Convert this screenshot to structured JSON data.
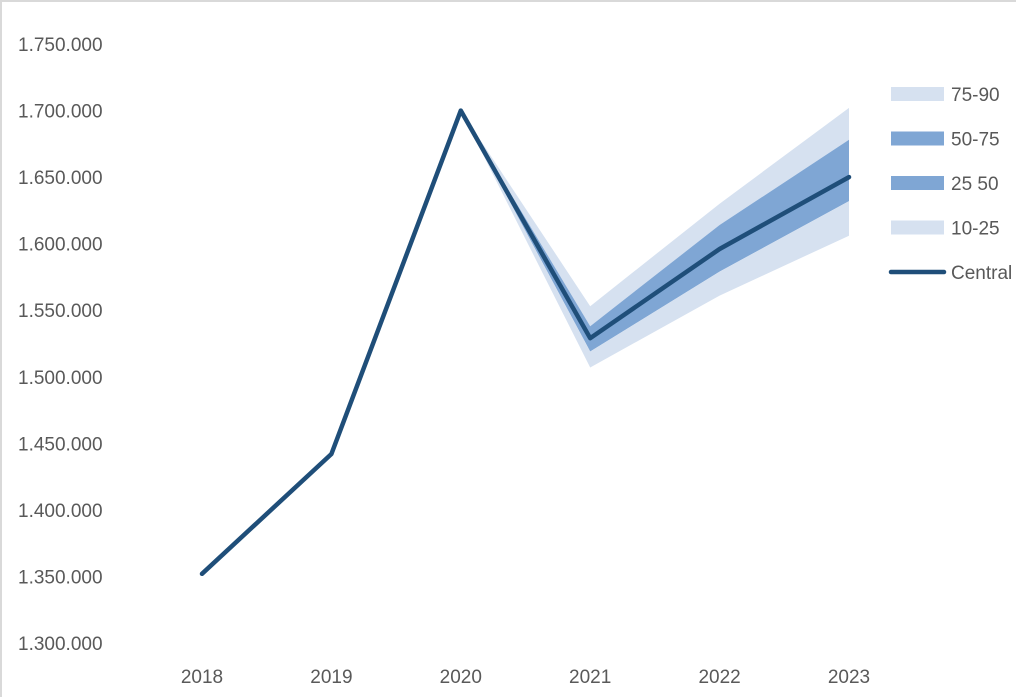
{
  "chart_data": {
    "type": "area",
    "title": "",
    "xlabel": "",
    "ylabel": "",
    "categories": [
      "2018",
      "2019",
      "2020",
      "2021",
      "2022",
      "2023"
    ],
    "ylim": [
      1300000,
      1750000
    ],
    "y_ticks": [
      "1.300.000",
      "1.350.000",
      "1.400.000",
      "1.450.000",
      "1.500.000",
      "1.550.000",
      "1.600.000",
      "1.650.000",
      "1.700.000",
      "1.750.000"
    ],
    "grid": false,
    "legend_position": "right",
    "bands": [
      {
        "name": "75-90",
        "color": "#d6e1f0",
        "lower": [
          null,
          null,
          1700000,
          1538000,
          1614000,
          1678000
        ],
        "upper": [
          null,
          null,
          1700000,
          1553000,
          1630000,
          1702000
        ]
      },
      {
        "name": "50-75",
        "color": "#7fa6d4",
        "lower": [
          null,
          null,
          1700000,
          1529000,
          1596000,
          1650000
        ],
        "upper": [
          null,
          null,
          1700000,
          1538000,
          1614000,
          1678000
        ]
      },
      {
        "name": "25 50",
        "color": "#7fa6d4",
        "lower": [
          null,
          null,
          1700000,
          1519000,
          1579000,
          1632000
        ],
        "upper": [
          null,
          null,
          1700000,
          1529000,
          1596000,
          1650000
        ]
      },
      {
        "name": "10-25",
        "color": "#d6e1f0",
        "lower": [
          null,
          null,
          1700000,
          1507000,
          1561000,
          1606000
        ],
        "upper": [
          null,
          null,
          1700000,
          1519000,
          1579000,
          1632000
        ]
      }
    ],
    "series": [
      {
        "name": "Central",
        "color": "#1f4e79",
        "values": [
          1352000,
          1442000,
          1700000,
          1529000,
          1596000,
          1650000
        ]
      }
    ]
  }
}
